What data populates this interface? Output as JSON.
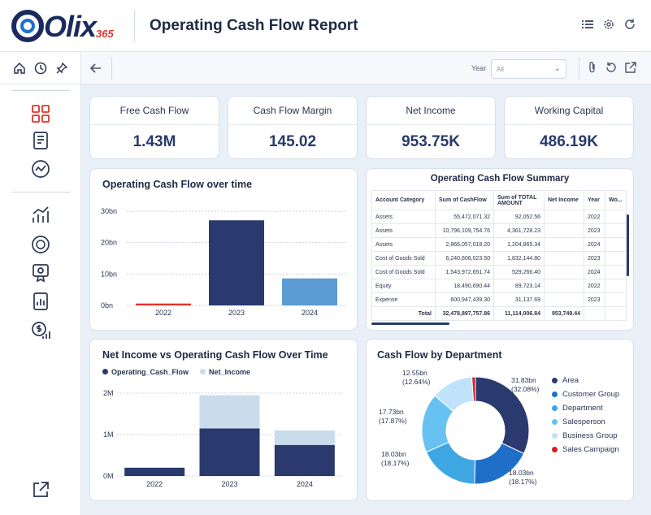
{
  "app": {
    "logo_text": "Olix",
    "logo_sub": "365",
    "report_title": "Operating Cash Flow Report"
  },
  "filters": {
    "year_label": "Year",
    "year_value": "All"
  },
  "kpis": [
    {
      "label": "Free Cash Flow",
      "value": "1.43M"
    },
    {
      "label": "Cash Flow Margin",
      "value": "145.02"
    },
    {
      "label": "Net Income",
      "value": "953.75K"
    },
    {
      "label": "Working Capital",
      "value": "486.19K"
    }
  ],
  "colors": {
    "navy": "#2b3a6e",
    "light_blue": "#5b9bd1",
    "red": "#e0342e",
    "pale_blue": "#c9dcec"
  },
  "chart_data": [
    {
      "type": "bar",
      "title": "Operating Cash Flow over time",
      "categories": [
        "2022",
        "2023",
        "2024"
      ],
      "values": [
        0.6,
        27.1,
        8.6
      ],
      "bar_colors": [
        "#e0342e",
        "#2b3a6e",
        "#5b9bd1"
      ],
      "yticks": [
        "0bn",
        "10bn",
        "20bn",
        "30bn"
      ],
      "ylim": [
        0,
        30
      ],
      "grid": true
    },
    {
      "type": "bar",
      "title": "Net Income vs Operating Cash Flow Over Time",
      "stacked": true,
      "categories": [
        "2022",
        "2023",
        "2024"
      ],
      "series": [
        {
          "name": "Operating_Cash_Flow",
          "values": [
            0.2,
            1.15,
            0.75
          ],
          "color": "#2b3a6e"
        },
        {
          "name": "Net_Income",
          "values": [
            0.0,
            0.8,
            0.35
          ],
          "color": "#c9dcec"
        }
      ],
      "yticks": [
        "0M",
        "1M",
        "2M"
      ],
      "ylim": [
        0,
        2
      ],
      "legend": "top-left",
      "grid": true
    },
    {
      "type": "pie",
      "donut": true,
      "title": "Cash Flow by Department",
      "slices": [
        {
          "name": "Area",
          "value": 32.08,
          "color": "#2b3a6e"
        },
        {
          "name": "Customer Group",
          "value": 18.17,
          "color": "#1f6fc8"
        },
        {
          "name": "Department",
          "value": 18.17,
          "color": "#3ea7e3"
        },
        {
          "name": "Salesperson",
          "value": 17.87,
          "color": "#67c2f2"
        },
        {
          "name": "Business Group",
          "value": 12.64,
          "color": "#bfe3fa"
        },
        {
          "name": "Sales Campaign",
          "value": 1.07,
          "color": "#d11f2a"
        }
      ],
      "legend": "right"
    }
  ],
  "donut_labels": [
    {
      "value": "31.83bn",
      "pct": "(32.08%)"
    },
    {
      "value": "18.03bn",
      "pct": "(18.17%)"
    },
    {
      "value": "18.03bn",
      "pct": "(18.17%)"
    },
    {
      "value": "17.73bn",
      "pct": "(17.87%)"
    },
    {
      "value": "12.55bn",
      "pct": "(12.64%)"
    }
  ],
  "summary": {
    "title": "Operating Cash Flow Summary",
    "headers": [
      "Account Category",
      "Sum of CashFlow",
      "Sum of TOTAL AMOUNT",
      "Net Income",
      "Year",
      "Wo..."
    ],
    "rows": [
      [
        "Assets",
        "55,472,071.32",
        "92,052.56",
        "",
        "2022"
      ],
      [
        "Assets",
        "10,796,109,754.76",
        "4,361,728.23",
        "",
        "2023"
      ],
      [
        "Assets",
        "2,866,057,018.20",
        "1,204,865.34",
        "",
        "2024"
      ],
      [
        "Cost of Goods Sold",
        "6,240,608,023.50",
        "1,832,144.80",
        "",
        "2023"
      ],
      [
        "Cost of Goods Sold",
        "1,543,972,651.74",
        "529,266.40",
        "",
        "2024"
      ],
      [
        "Equity",
        "18,490,690.44",
        "89,723.14",
        "",
        "2022"
      ],
      [
        "Expense",
        "600,947,439.30",
        "31,137.69",
        "",
        "2023"
      ]
    ],
    "total": [
      "Total",
      "32,478,897,757.86",
      "11,114,006.84",
      "953,749.44",
      ""
    ]
  }
}
